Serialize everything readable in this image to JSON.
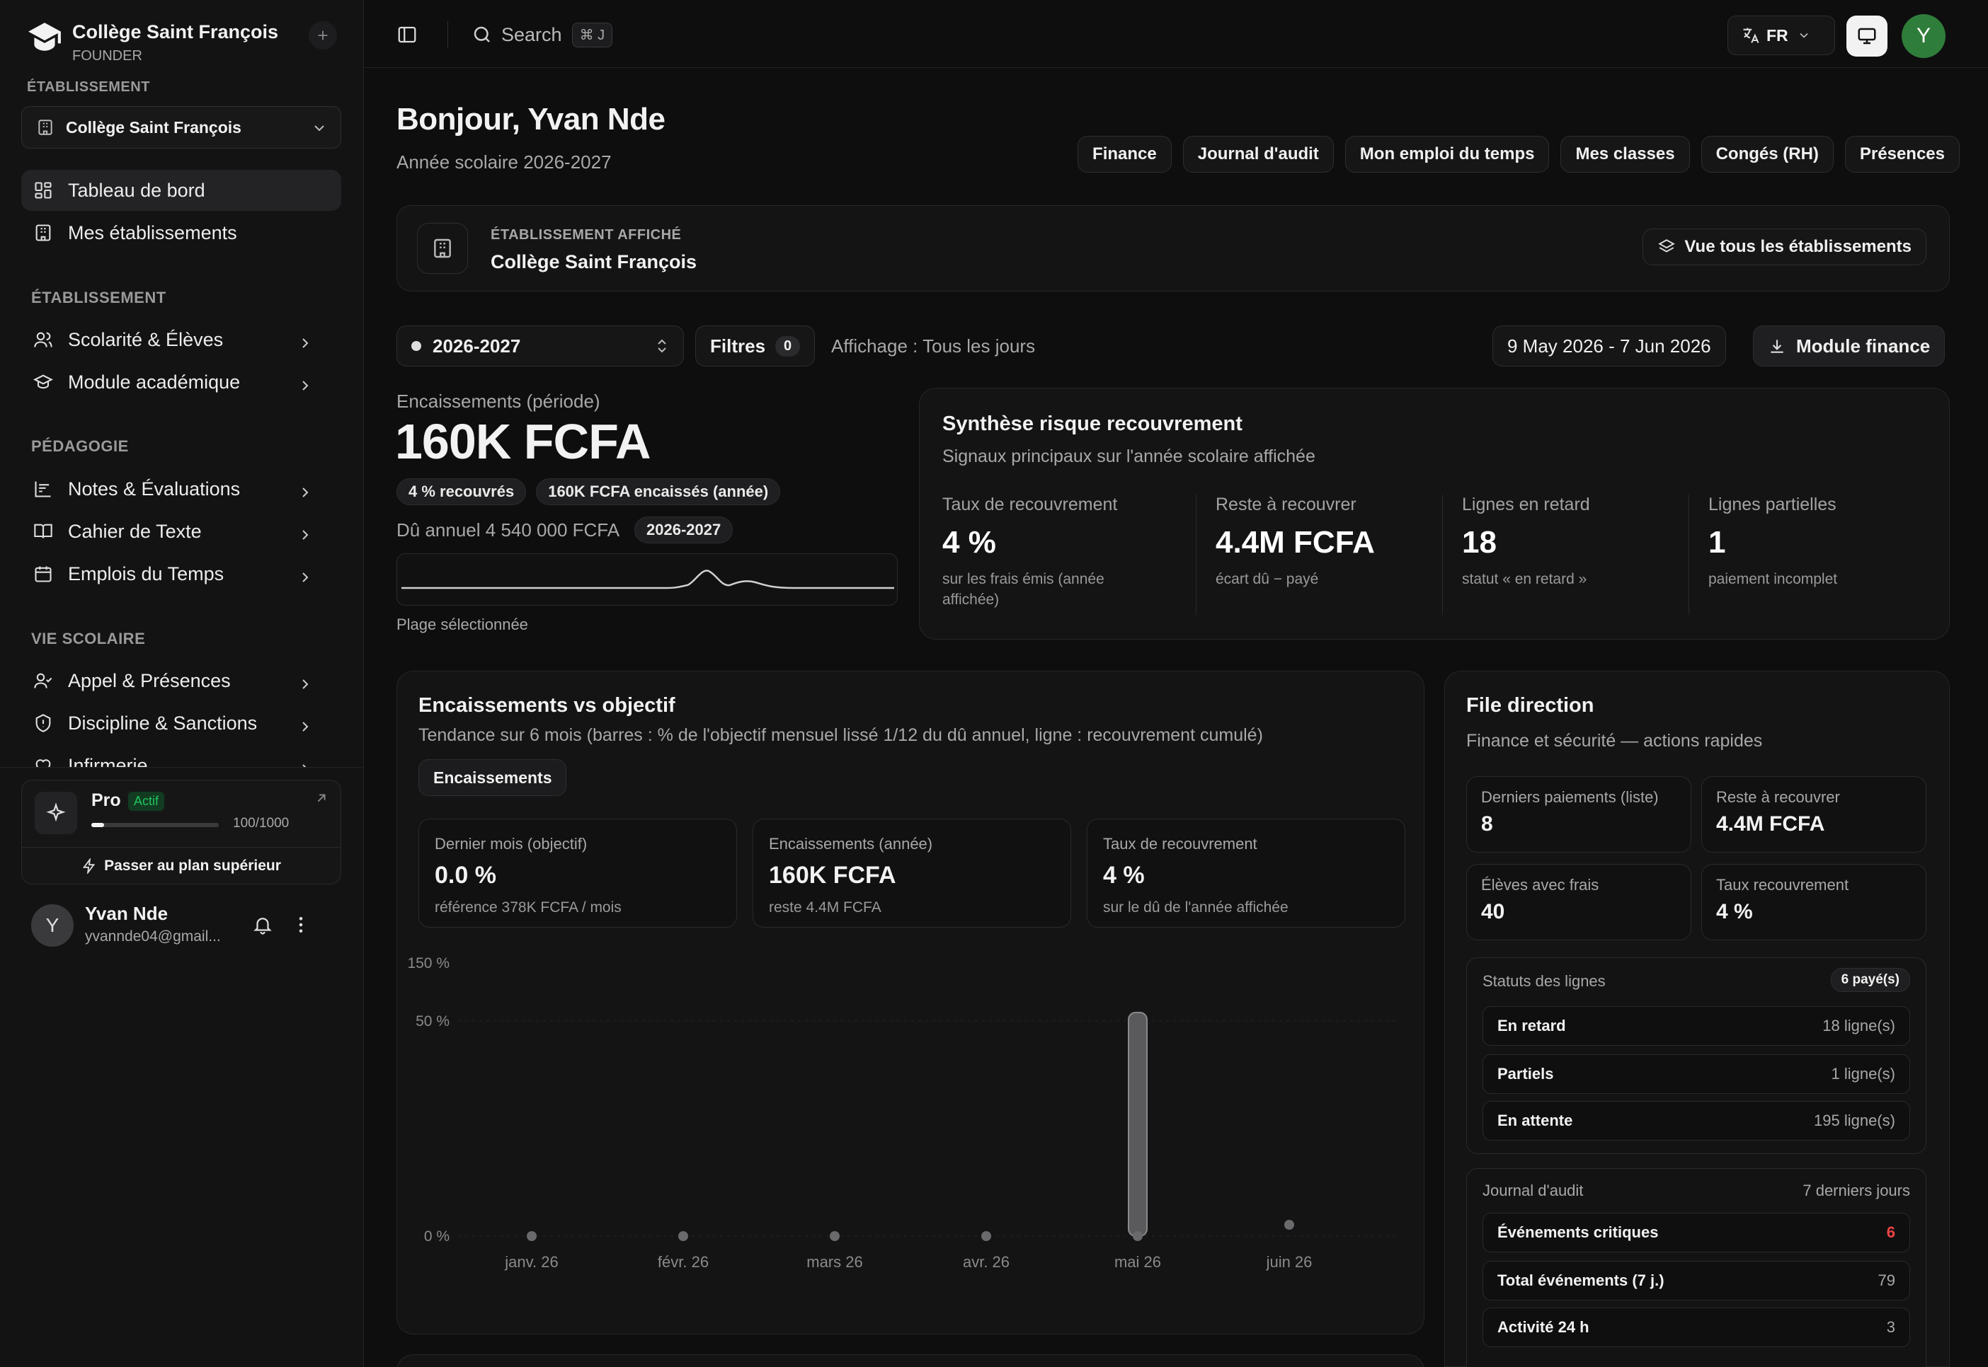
{
  "sidebar": {
    "org_name": "Collège Saint François",
    "org_role": "FOUNDER",
    "section_establishment": "ÉTABLISSEMENT",
    "selected_establishment": "Collège Saint François",
    "nav_top": [
      {
        "label": "Tableau de bord"
      },
      {
        "label": "Mes établissements"
      }
    ],
    "group1_title": "ÉTABLISSEMENT",
    "group1": [
      {
        "label": "Scolarité & Élèves"
      },
      {
        "label": "Module académique"
      }
    ],
    "group2_title": "PÉDAGOGIE",
    "group2": [
      {
        "label": "Notes & Évaluations"
      },
      {
        "label": "Cahier de Texte"
      },
      {
        "label": "Emplois du Temps"
      }
    ],
    "group3_title": "VIE SCOLAIRE",
    "group3": [
      {
        "label": "Appel & Présences"
      },
      {
        "label": "Discipline & Sanctions"
      },
      {
        "label": "Infirmerie"
      }
    ],
    "plan": {
      "name": "Pro",
      "status": "Actif",
      "usage": "100/1000",
      "usage_fraction": 0.1,
      "upgrade": "Passer au plan supérieur"
    },
    "user": {
      "initial": "Y",
      "name": "Yvan Nde",
      "email": "yvannde04@gmail..."
    }
  },
  "topbar": {
    "search": "Search",
    "shortcut": "⌘ J",
    "lang": "FR",
    "avatar_initial": "Y"
  },
  "header": {
    "greeting": "Bonjour, Yvan Nde",
    "subtitle": "Année scolaire 2026-2027",
    "quick_links": [
      "Finance",
      "Journal d'audit",
      "Mon emploi du temps",
      "Mes classes",
      "Congés (RH)",
      "Présences"
    ]
  },
  "establishment_card": {
    "label": "ÉTABLISSEMENT AFFICHÉ",
    "name": "Collège Saint François",
    "view_all": "Vue tous les établissements"
  },
  "filters": {
    "year": "2026-2027",
    "filters_label": "Filtres",
    "filters_count": "0",
    "display": "Affichage : Tous les jours",
    "date_range": "9 May 2026 - 7 Jun 2026",
    "module_button": "Module finance"
  },
  "collections": {
    "label": "Encaissements (période)",
    "amount": "160K FCFA",
    "badge1": "4 % recouvrés",
    "badge2": "160K FCFA encaissés (année)",
    "annual_due": "Dû annuel 4 540 000 FCFA",
    "year_badge": "2026-2027",
    "range_label": "Plage sélectionnée"
  },
  "risk": {
    "title": "Synthèse risque recouvrement",
    "subtitle": "Signaux principaux sur l'année scolaire affichée",
    "stats": [
      {
        "label": "Taux de recouvrement",
        "value": "4 %",
        "sub": "sur les frais émis (année affichée)"
      },
      {
        "label": "Reste à recouvrer",
        "value": "4.4M FCFA",
        "sub": "écart dû − payé"
      },
      {
        "label": "Lignes en retard",
        "value": "18",
        "sub": "statut « en retard »"
      },
      {
        "label": "Lignes partielles",
        "value": "1",
        "sub": "paiement incomplet"
      }
    ]
  },
  "chart_card": {
    "title": "Encaissements vs objectif",
    "subtitle": "Tendance sur 6 mois (barres : % de l'objectif mensuel lissé 1/12 du dû annuel, ligne : recouvrement cumulé)",
    "tab": "Encaissements",
    "kpis": [
      {
        "label": "Dernier mois (objectif)",
        "value": "0.0 %",
        "sub": "référence 378K FCFA / mois"
      },
      {
        "label": "Encaissements (année)",
        "value": "160K FCFA",
        "sub": "reste 4.4M FCFA"
      },
      {
        "label": "Taux de recouvrement",
        "value": "4 %",
        "sub": "sur le dû de l'année affichée"
      }
    ]
  },
  "chart_data": {
    "type": "bar",
    "categories": [
      "janv. 26",
      "févr. 26",
      "mars 26",
      "avr. 26",
      "mai 26",
      "juin 26"
    ],
    "values": [
      0,
      0,
      0,
      0,
      42,
      0
    ],
    "line_values": [
      0,
      0,
      0,
      0,
      0,
      4
    ],
    "y_ticks": [
      "150 %",
      "50 %",
      "0 %"
    ],
    "ylim": [
      0,
      150
    ],
    "grid": true
  },
  "direction": {
    "title": "File direction",
    "subtitle": "Finance et sécurité — actions rapides",
    "tiles": [
      {
        "label": "Derniers paiements (liste)",
        "value": "8"
      },
      {
        "label": "Reste à recouvrer",
        "value": "4.4M FCFA"
      },
      {
        "label": "Élèves avec frais",
        "value": "40"
      },
      {
        "label": "Taux recouvrement",
        "value": "4 %"
      }
    ],
    "statuses_title": "Statuts des lignes",
    "statuses_badge": "6 payé(s)",
    "statuses": [
      {
        "label": "En retard",
        "value": "18 ligne(s)"
      },
      {
        "label": "Partiels",
        "value": "1 ligne(s)"
      },
      {
        "label": "En attente",
        "value": "195 ligne(s)"
      }
    ],
    "audit_title": "Journal d'audit",
    "audit_period": "7 derniers jours",
    "audit": [
      {
        "label": "Événements critiques",
        "value": "6"
      },
      {
        "label": "Total événements (7 j.)",
        "value": "79"
      },
      {
        "label": "Activité 24 h",
        "value": "3"
      }
    ]
  },
  "colors": {
    "accent_green": "#2f7d3a",
    "critical_red": "#ef4444",
    "actif_green": "#22c55e"
  }
}
